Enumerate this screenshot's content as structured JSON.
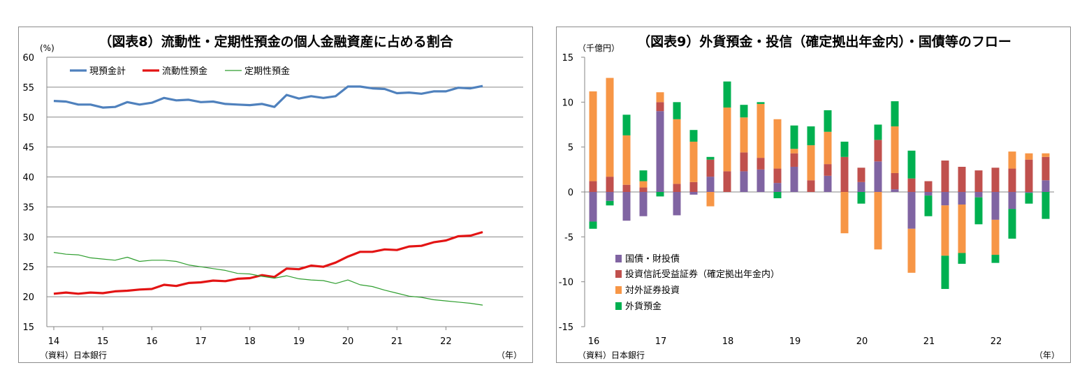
{
  "chart_data": [
    {
      "type": "line",
      "title": "（図表8）流動性・定期性預金の個人金融資産に占める割合",
      "yunit": "(%)",
      "xunit": "（年）",
      "source": "（資料）日本銀行",
      "ylim": [
        15,
        60
      ],
      "yticks": [
        "60",
        "55",
        "50",
        "45",
        "40",
        "35",
        "30",
        "25",
        "20",
        "15"
      ],
      "xticks": [
        "14",
        "15",
        "16",
        "17",
        "18",
        "19",
        "20",
        "21",
        "22"
      ],
      "grid": true,
      "legend_position": "top-left",
      "x": [
        "14Q1",
        "14Q2",
        "14Q3",
        "14Q4",
        "15Q1",
        "15Q2",
        "15Q3",
        "15Q4",
        "16Q1",
        "16Q2",
        "16Q3",
        "16Q4",
        "17Q1",
        "17Q2",
        "17Q3",
        "17Q4",
        "18Q1",
        "18Q2",
        "18Q3",
        "18Q4",
        "19Q1",
        "19Q2",
        "19Q3",
        "19Q4",
        "20Q1",
        "20Q2",
        "20Q3",
        "20Q4",
        "21Q1",
        "21Q2",
        "21Q3",
        "21Q4",
        "22Q1",
        "22Q2",
        "22Q3",
        "22Q4"
      ],
      "series": [
        {
          "name": "現預金計",
          "color": "#4f81bd",
          "values": [
            52.7,
            52.6,
            52.1,
            52.1,
            51.6,
            51.7,
            52.5,
            52.1,
            52.4,
            53.2,
            52.8,
            52.9,
            52.5,
            52.6,
            52.2,
            52.1,
            52.0,
            52.2,
            51.7,
            53.7,
            53.1,
            53.5,
            53.2,
            53.5,
            55.1,
            55.1,
            54.8,
            54.7,
            54.0,
            54.1,
            53.9,
            54.3,
            54.3,
            54.9,
            54.8,
            55.2
          ]
        },
        {
          "name": "流動性預金",
          "color": "#e31414",
          "values": [
            20.5,
            20.7,
            20.5,
            20.7,
            20.6,
            20.9,
            21.0,
            21.2,
            21.3,
            22.0,
            21.8,
            22.3,
            22.4,
            22.7,
            22.6,
            23.0,
            23.1,
            23.6,
            23.3,
            24.7,
            24.6,
            25.2,
            25.0,
            25.7,
            26.7,
            27.5,
            27.5,
            27.9,
            27.8,
            28.4,
            28.5,
            29.1,
            29.4,
            30.1,
            30.2,
            30.8
          ]
        },
        {
          "name": "定期性預金",
          "color": "#2e9e2e",
          "values": [
            27.4,
            27.1,
            27.0,
            26.5,
            26.3,
            26.1,
            26.6,
            25.9,
            26.1,
            26.1,
            25.9,
            25.3,
            25.0,
            24.7,
            24.4,
            23.9,
            23.8,
            23.4,
            23.1,
            23.5,
            23.0,
            22.8,
            22.7,
            22.2,
            22.8,
            22.0,
            21.7,
            21.1,
            20.6,
            20.1,
            19.9,
            19.5,
            19.3,
            19.1,
            18.9,
            18.6
          ]
        }
      ]
    },
    {
      "type": "bar",
      "stacked": true,
      "title": "（図表9）外貨預金・投信（確定拠出年金内）・国債等のフロー",
      "yunit": "（千億円）",
      "xunit": "（年）",
      "source": "（資料）日本銀行",
      "ylim": [
        -15,
        15
      ],
      "yticks": [
        "15",
        "10",
        "5",
        "0",
        "-5",
        "-10",
        "-15"
      ],
      "xticks": [
        "16",
        "17",
        "18",
        "19",
        "20",
        "21",
        "22"
      ],
      "legend_position": "bottom-left",
      "categories": [
        "16Q1",
        "16Q2",
        "16Q3",
        "16Q4",
        "17Q1",
        "17Q2",
        "17Q3",
        "17Q4",
        "18Q1",
        "18Q2",
        "18Q3",
        "18Q4",
        "19Q1",
        "19Q2",
        "19Q3",
        "19Q4",
        "20Q1",
        "20Q2",
        "20Q3",
        "20Q4",
        "21Q1",
        "21Q2",
        "21Q3",
        "21Q4",
        "22Q1",
        "22Q2",
        "22Q3",
        "22Q4"
      ],
      "series": [
        {
          "name": "国債・財投債",
          "color": "#8064a2",
          "values": [
            -3.3,
            -1.0,
            -3.2,
            -2.7,
            9.0,
            -2.6,
            -0.3,
            1.7,
            0,
            2.3,
            2.5,
            1.0,
            2.8,
            0,
            1.8,
            0,
            1.1,
            3.4,
            0.3,
            -4.1,
            -0.4,
            -1.5,
            -1.4,
            -0.6,
            -3.1,
            -1.9,
            -0.1,
            1.3
          ]
        },
        {
          "name": "投資信託受益証券（確定拠出年金内）",
          "color": "#c0504d",
          "values": [
            1.2,
            1.7,
            0.8,
            0.5,
            1.0,
            0.9,
            1.1,
            1.9,
            2.3,
            2.1,
            1.3,
            1.6,
            1.5,
            1.3,
            1.3,
            3.9,
            1.6,
            2.4,
            1.8,
            1.5,
            1.2,
            3.5,
            2.8,
            2.4,
            2.7,
            2.6,
            3.6,
            2.6
          ]
        },
        {
          "name": "対外証券投資",
          "color": "#f79646",
          "values": [
            10.0,
            11.0,
            5.5,
            0.7,
            1.1,
            7.2,
            4.5,
            -1.6,
            7.1,
            3.9,
            6.0,
            5.5,
            0.5,
            3.9,
            3.6,
            -4.6,
            0,
            -6.4,
            5.2,
            -4.9,
            0,
            -5.6,
            -5.4,
            0,
            -3.9,
            1.9,
            0.7,
            0.4
          ]
        },
        {
          "name": "外貨預金",
          "color": "#00b050",
          "values": [
            -0.8,
            -0.5,
            2.3,
            1.2,
            -0.5,
            1.9,
            1.3,
            0.3,
            2.9,
            1.4,
            0.2,
            -0.7,
            2.6,
            2.1,
            2.4,
            1.7,
            -1.3,
            1.7,
            2.8,
            3.1,
            -2.3,
            -3.7,
            -1.2,
            -3.0,
            -0.9,
            -3.3,
            -1.2,
            -3.0
          ]
        }
      ]
    }
  ]
}
